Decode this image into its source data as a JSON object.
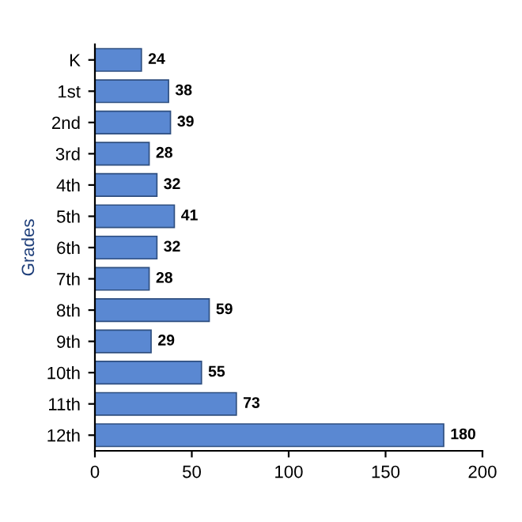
{
  "chart_data": {
    "type": "bar",
    "orientation": "horizontal",
    "ylabel": "Grades",
    "categories": [
      "K",
      "1st",
      "2nd",
      "3rd",
      "4th",
      "5th",
      "6th",
      "7th",
      "8th",
      "9th",
      "10th",
      "11th",
      "12th"
    ],
    "values": [
      24,
      38,
      39,
      28,
      32,
      41,
      32,
      28,
      59,
      29,
      55,
      73,
      180
    ],
    "color": "#5a88d2",
    "xlim": [
      0,
      200
    ],
    "xticks": [
      0,
      50,
      100,
      150,
      200
    ],
    "data_labels": true,
    "grid": false,
    "legend": false
  }
}
